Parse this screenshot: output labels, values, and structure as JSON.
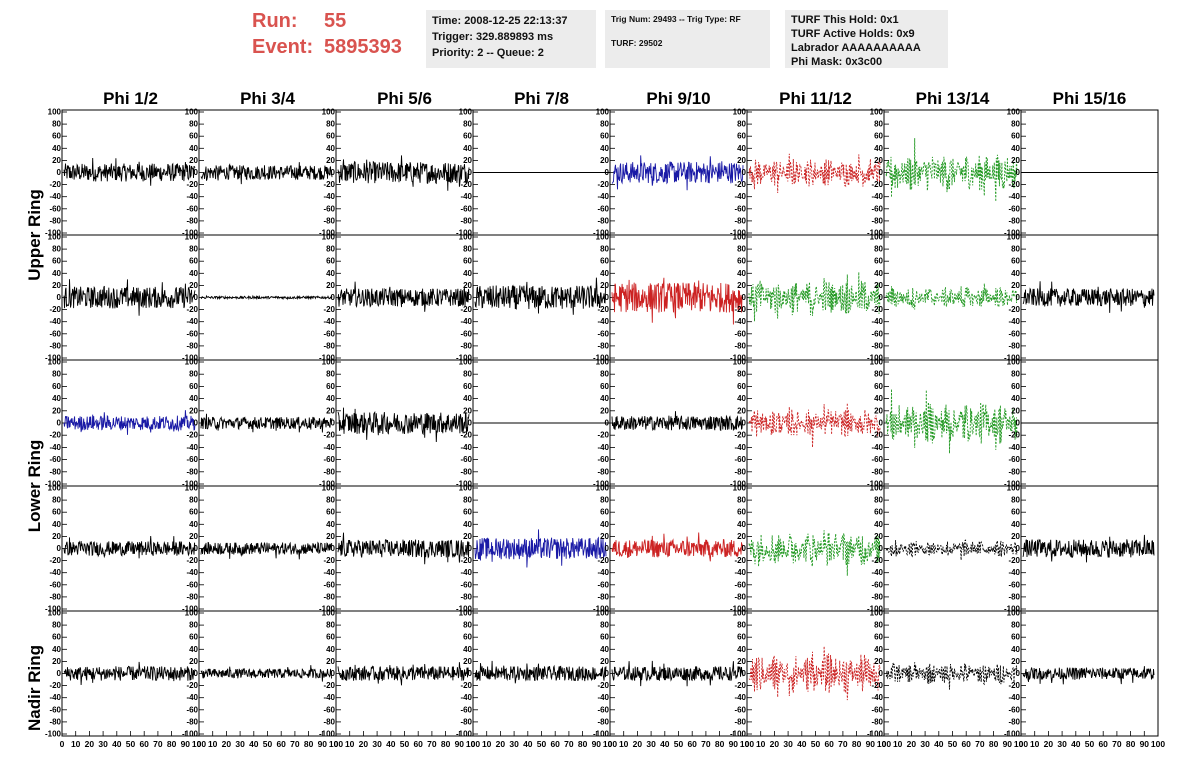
{
  "header": {
    "run_label": "Run:",
    "run_value": "55",
    "event_label": "Event:",
    "event_value": "5895393",
    "time_line": "Time: 2008-12-25 22:13:37",
    "trigger_line": "Trigger: 329.889893 ms",
    "priority_line": "Priority: 2 -- Queue: 2",
    "trig_line": "Trig Num: 29493 -- Trig Type: RF",
    "turf_line": "TURF: 29502",
    "turf_hold_line": "TURF This Hold: 0x1",
    "turf_active_line": "TURF Active Holds: 0x9",
    "labrador_line": "Labrador AAAAAAAAAA",
    "phi_mask_line": "Phi Mask: 0x3c00"
  },
  "colors": {
    "run_text": "#d9534f",
    "black": "#000000",
    "blue": "#1a1aa6",
    "red": "#cc2222",
    "green": "#229922"
  },
  "chart_data": {
    "type": "line",
    "columns": [
      "Phi 1/2",
      "Phi 3/4",
      "Phi 5/6",
      "Phi 7/8",
      "Phi 9/10",
      "Phi 11/12",
      "Phi 13/14",
      "Phi 15/16"
    ],
    "row_groups": [
      "Upper Ring",
      "Lower Ring",
      "Nadir Ring"
    ],
    "ylim": [
      -100,
      100
    ],
    "xlim": [
      0,
      100
    ],
    "yticks": [
      -100,
      -80,
      -60,
      -40,
      -20,
      0,
      20,
      40,
      60,
      80,
      100
    ],
    "xticks": [
      0,
      10,
      20,
      30,
      40,
      50,
      60,
      70,
      80,
      90,
      100
    ],
    "xtick_labels": [
      "0",
      "10",
      "20",
      "30",
      "40",
      "50",
      "60",
      "70",
      "80",
      "90",
      "100"
    ],
    "panels": [
      [
        "black",
        "black",
        "black",
        "flat",
        "blue",
        "red-dash",
        "green-dash",
        "flat"
      ],
      [
        "black",
        "black-small",
        "black",
        "black",
        "red",
        "green-dash",
        "green-dash",
        "black"
      ],
      [
        "blue",
        "black",
        "black",
        "flat",
        "black",
        "red-dash",
        "green-dash",
        "flat"
      ],
      [
        "black",
        "black",
        "black",
        "blue",
        "red",
        "green-dash",
        "black-dash",
        "black"
      ],
      [
        "black",
        "black",
        "black",
        "black",
        "black",
        "red-dash",
        "black-dash",
        "black"
      ]
    ],
    "amplitudes": [
      [
        15,
        12,
        18,
        0,
        18,
        20,
        28,
        0
      ],
      [
        18,
        2,
        15,
        20,
        25,
        25,
        15,
        15
      ],
      [
        12,
        10,
        18,
        0,
        12,
        20,
        30,
        0
      ],
      [
        12,
        10,
        15,
        18,
        15,
        25,
        12,
        15
      ],
      [
        12,
        8,
        12,
        12,
        12,
        28,
        15,
        10
      ]
    ]
  }
}
